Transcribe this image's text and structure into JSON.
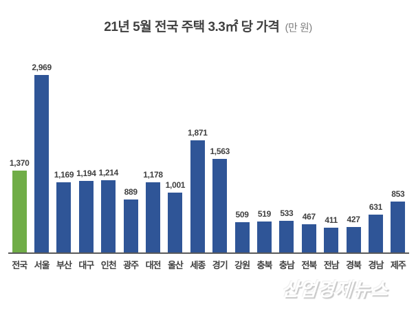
{
  "title": {
    "main": "21년 5월 전국 주택 3.3㎡ 당 가격",
    "unit": "(만 원)"
  },
  "watermark": "산업경제뉴스",
  "colors": {
    "bar_default": "#2F5597",
    "bar_highlight": "#70AD47",
    "axis_line": "#595959",
    "label_text": "#404040",
    "title_text": "#404040",
    "unit_text": "#7F7F7F"
  },
  "chart_data": {
    "type": "bar",
    "title": "21년 5월 전국 주택 3.3㎡ 당 가격 (만 원)",
    "xlabel": "",
    "ylabel": "",
    "unit": "만 원",
    "categories": [
      "전국",
      "서울",
      "부산",
      "대구",
      "인천",
      "광주",
      "대전",
      "울산",
      "세종",
      "경기",
      "강원",
      "충북",
      "충남",
      "전북",
      "전남",
      "경북",
      "경남",
      "제주"
    ],
    "values": [
      1370,
      2969,
      1169,
      1194,
      1214,
      889,
      1178,
      1001,
      1871,
      1563,
      509,
      519,
      533,
      467,
      411,
      427,
      631,
      853
    ],
    "value_labels": [
      "1,370",
      "2,969",
      "1,169",
      "1,194",
      "1,214",
      "889",
      "1,178",
      "1,001",
      "1,871",
      "1,563",
      "509",
      "519",
      "533",
      "467",
      "411",
      "427",
      "631",
      "853"
    ],
    "highlight_index": 0,
    "bar_color": "#2F5597",
    "highlight_color": "#70AD47",
    "ylim": [
      0,
      3000
    ],
    "grid": false,
    "legend": false,
    "data_labels": true,
    "y_axis_visible": false,
    "x_axis_line": true
  }
}
